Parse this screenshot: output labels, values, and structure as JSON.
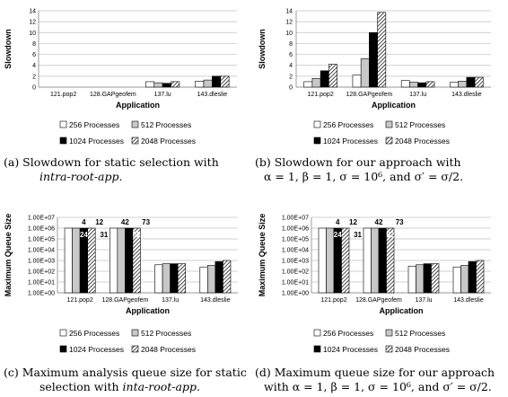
{
  "legend_labels": [
    "256 Processes",
    "512 Processes",
    "1024 Processes",
    "2048 Processes"
  ],
  "chart_data": [
    {
      "type": "bar",
      "xlabel": "Application",
      "ylabel": "Slowdown",
      "scale": "linear",
      "ylim": [
        0,
        14
      ],
      "yticks": [
        "0",
        "2",
        "4",
        "6",
        "8",
        "10",
        "12",
        "14"
      ],
      "categories": [
        "121.pop2",
        "128.GAPgeofem",
        "137.lu",
        "143.dleslie"
      ],
      "series": [
        {
          "name": "256 Processes",
          "values": [
            null,
            null,
            1.0,
            1.1
          ]
        },
        {
          "name": "512 Processes",
          "values": [
            null,
            null,
            0.8,
            1.3
          ]
        },
        {
          "name": "1024 Processes",
          "values": [
            null,
            null,
            0.7,
            2.0
          ]
        },
        {
          "name": "2048 Processes",
          "values": [
            null,
            null,
            1.0,
            2.0
          ]
        }
      ],
      "legend": "bottom",
      "grid": true
    },
    {
      "type": "bar",
      "xlabel": "Application",
      "ylabel": "Slowdown",
      "scale": "linear",
      "ylim": [
        0,
        14
      ],
      "yticks": [
        "0",
        "2",
        "4",
        "6",
        "8",
        "10",
        "12",
        "14"
      ],
      "categories": [
        "121.pop2",
        "128.GAPgeofem",
        "137.lu",
        "143.dleslie"
      ],
      "series": [
        {
          "name": "256 Processes",
          "values": [
            1.0,
            2.2,
            1.2,
            0.9
          ]
        },
        {
          "name": "512 Processes",
          "values": [
            1.6,
            5.2,
            0.9,
            1.1
          ]
        },
        {
          "name": "1024 Processes",
          "values": [
            3.0,
            10.0,
            0.8,
            1.8
          ]
        },
        {
          "name": "2048 Processes",
          "values": [
            4.2,
            13.7,
            1.0,
            1.8
          ]
        }
      ],
      "legend": "bottom",
      "grid": true
    },
    {
      "type": "bar",
      "xlabel": "Application",
      "ylabel": "Maximum Queue Size",
      "scale": "log",
      "ylim": [
        1,
        10000000
      ],
      "yticks": [
        "1.00E+00",
        "1.00E+01",
        "1.00E+02",
        "1.00E+03",
        "1.00E+04",
        "1.00E+05",
        "1.00E+06",
        "1.00E+07"
      ],
      "categories": [
        "121.pop2",
        "128.GAPgeofem",
        "137.lu",
        "143.dleslie"
      ],
      "series": [
        {
          "name": "256 Processes",
          "values": [
            1000000,
            1000000,
            400,
            250
          ]
        },
        {
          "name": "512 Processes",
          "values": [
            1000000,
            1000000,
            500,
            350
          ]
        },
        {
          "name": "1024 Processes",
          "values": [
            1000000,
            1000000,
            500,
            800
          ]
        },
        {
          "name": "2048 Processes",
          "values": [
            1000000,
            1000000,
            500,
            1000
          ]
        }
      ],
      "annotations": [
        "4",
        "24",
        "12",
        "31",
        "42",
        "52",
        "73"
      ],
      "legend": "bottom",
      "grid": true
    },
    {
      "type": "bar",
      "xlabel": "Application",
      "ylabel": "Maximum Queue Size",
      "scale": "log",
      "ylim": [
        1,
        10000000
      ],
      "yticks": [
        "1.00E+00",
        "1.00E+01",
        "1.00E+02",
        "1.00E+03",
        "1.00E+04",
        "1.00E+05",
        "1.00E+06",
        "1.00E+07"
      ],
      "categories": [
        "121.pop2",
        "128.GAPgeofem",
        "137.lu",
        "143.dleslie"
      ],
      "series": [
        {
          "name": "256 Processes",
          "values": [
            1000000,
            1000000,
            300,
            250
          ]
        },
        {
          "name": "512 Processes",
          "values": [
            1000000,
            1000000,
            400,
            350
          ]
        },
        {
          "name": "1024 Processes",
          "values": [
            1000000,
            1000000,
            500,
            800
          ]
        },
        {
          "name": "2048 Processes",
          "values": [
            1000000,
            1000000,
            500,
            1000
          ]
        }
      ],
      "annotations": [
        "4",
        "24",
        "12",
        "31",
        "42",
        "52",
        "73"
      ],
      "legend": "bottom",
      "grid": true
    }
  ],
  "captions": {
    "a": {
      "line1": "(a) Slowdown for static selection with",
      "line2": "intra-root-app."
    },
    "b": {
      "line1": "(b) Slowdown for our approach with",
      "line2": "α = 1, β = 1, σ = 10⁶, and σ′ = σ/2."
    },
    "c": {
      "line1": "(c) Maximum analysis queue size for static",
      "line2a": "selection with ",
      "line2b": "inta-root-app."
    },
    "d": {
      "line1": "(d) Maximum queue size for our approach",
      "line2": "with α = 1, β = 1, σ = 10⁶, and σ′ = σ/2."
    }
  },
  "colors": {
    "s256": "#ffffff",
    "s512": "#c8c8c8",
    "s1024": "#000000",
    "s2048": "hatched",
    "grid": "#c0c0c0"
  }
}
